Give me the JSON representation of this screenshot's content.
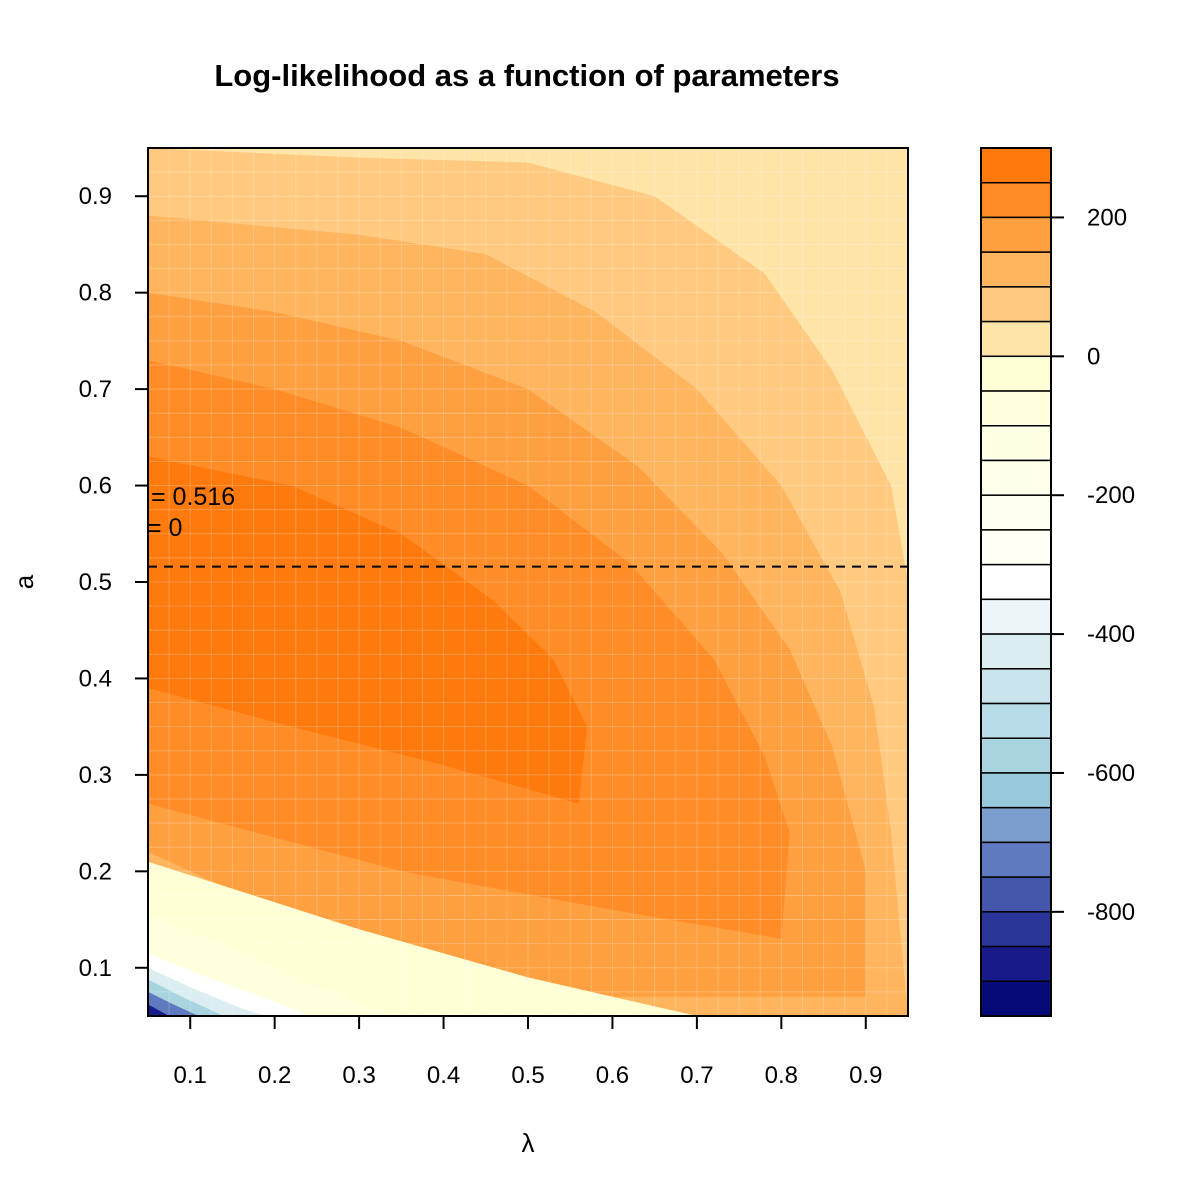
{
  "chart_data": {
    "type": "heatmap",
    "subtype": "filled-contour",
    "title": "Log-likelihood as a function of parameters",
    "xlabel": "λ",
    "ylabel": "a",
    "xlim": [
      0.05,
      0.95
    ],
    "ylim": [
      0.05,
      0.95
    ],
    "x_ticks": [
      0.1,
      0.2,
      0.3,
      0.4,
      0.5,
      0.6,
      0.7,
      0.8,
      0.9
    ],
    "y_ticks": [
      0.1,
      0.2,
      0.3,
      0.4,
      0.5,
      0.6,
      0.7,
      0.8,
      0.9
    ],
    "x_tick_labels": [
      "0.1",
      "0.2",
      "0.3",
      "0.4",
      "0.5",
      "0.6",
      "0.7",
      "0.8",
      "0.9"
    ],
    "y_tick_labels": [
      "0.1",
      "0.2",
      "0.3",
      "0.4",
      "0.5",
      "0.6",
      "0.7",
      "0.8",
      "0.9"
    ],
    "grid": true,
    "reference_line": {
      "orientation": "horizontal",
      "value": 0.516,
      "style": "dashed"
    },
    "annotations": [
      "= 0.516",
      "= 0"
    ],
    "colorbar": {
      "range": [
        -950,
        300
      ],
      "ticks": [
        200,
        0,
        -200,
        -400,
        -600,
        -800
      ],
      "tick_labels": [
        "200",
        "0",
        "-200",
        "-400",
        "-600",
        "-800"
      ],
      "levels": [
        {
          "from": 250,
          "to": 300,
          "color": "#FF7A0D"
        },
        {
          "from": 200,
          "to": 250,
          "color": "#FF8C26"
        },
        {
          "from": 150,
          "to": 200,
          "color": "#FFA040"
        },
        {
          "from": 100,
          "to": 150,
          "color": "#FFB45E"
        },
        {
          "from": 50,
          "to": 100,
          "color": "#FFCA80"
        },
        {
          "from": 0,
          "to": 50,
          "color": "#FFE4A8"
        },
        {
          "from": -50,
          "to": 0,
          "color": "#FFFFD6"
        },
        {
          "from": -100,
          "to": -50,
          "color": "#FFFFDE"
        },
        {
          "from": -150,
          "to": -100,
          "color": "#FFFFE4"
        },
        {
          "from": -200,
          "to": -150,
          "color": "#FFFFEA"
        },
        {
          "from": -250,
          "to": -200,
          "color": "#FFFFF0"
        },
        {
          "from": -300,
          "to": -250,
          "color": "#FFFFF6"
        },
        {
          "from": -350,
          "to": -300,
          "color": "#FFFFFF"
        },
        {
          "from": -400,
          "to": -350,
          "color": "#EEF5F8"
        },
        {
          "from": -450,
          "to": -400,
          "color": "#DCEDF2"
        },
        {
          "from": -500,
          "to": -450,
          "color": "#C9E4ED"
        },
        {
          "from": -550,
          "to": -500,
          "color": "#B8DCE7"
        },
        {
          "from": -600,
          "to": -550,
          "color": "#A8D4E0"
        },
        {
          "from": -650,
          "to": -600,
          "color": "#98CADB"
        },
        {
          "from": -700,
          "to": -650,
          "color": "#7B9ECE"
        },
        {
          "from": -750,
          "to": -700,
          "color": "#5F7ABE"
        },
        {
          "from": -800,
          "to": -750,
          "color": "#4456AA"
        },
        {
          "from": -850,
          "to": -800,
          "color": "#2A3698"
        },
        {
          "from": -900,
          "to": -850,
          "color": "#181A8A"
        },
        {
          "from": -950,
          "to": -900,
          "color": "#050A78"
        }
      ]
    },
    "regions": [
      {
        "level": 0,
        "shape": [
          [
            0.05,
            0.95
          ],
          [
            0.95,
            0.95
          ],
          [
            0.95,
            0.05
          ],
          [
            0.05,
            0.05
          ]
        ]
      },
      {
        "level": 50,
        "shape": [
          [
            0.05,
            0.95
          ],
          [
            0.3,
            0.94
          ],
          [
            0.5,
            0.935
          ],
          [
            0.65,
            0.9
          ],
          [
            0.78,
            0.82
          ],
          [
            0.86,
            0.72
          ],
          [
            0.93,
            0.6
          ],
          [
            0.95,
            0.5
          ],
          [
            0.95,
            0.05
          ],
          [
            0.05,
            0.05
          ]
        ]
      },
      {
        "level": 100,
        "shape": [
          [
            0.05,
            0.88
          ],
          [
            0.3,
            0.86
          ],
          [
            0.45,
            0.84
          ],
          [
            0.58,
            0.78
          ],
          [
            0.7,
            0.7
          ],
          [
            0.8,
            0.6
          ],
          [
            0.87,
            0.49
          ],
          [
            0.91,
            0.37
          ],
          [
            0.93,
            0.24
          ],
          [
            0.95,
            0.05
          ],
          [
            0.05,
            0.05
          ]
        ]
      },
      {
        "level": 150,
        "shape": [
          [
            0.05,
            0.8
          ],
          [
            0.2,
            0.78
          ],
          [
            0.35,
            0.75
          ],
          [
            0.5,
            0.7
          ],
          [
            0.63,
            0.62
          ],
          [
            0.73,
            0.53
          ],
          [
            0.81,
            0.43
          ],
          [
            0.86,
            0.33
          ],
          [
            0.9,
            0.2
          ],
          [
            0.9,
            0.07
          ],
          [
            0.6,
            0.07
          ],
          [
            0.3,
            0.12
          ],
          [
            0.05,
            0.22
          ]
        ]
      },
      {
        "level": 200,
        "shape": [
          [
            0.05,
            0.73
          ],
          [
            0.2,
            0.7
          ],
          [
            0.35,
            0.66
          ],
          [
            0.5,
            0.6
          ],
          [
            0.62,
            0.52
          ],
          [
            0.72,
            0.42
          ],
          [
            0.78,
            0.32
          ],
          [
            0.81,
            0.24
          ],
          [
            0.8,
            0.13
          ],
          [
            0.6,
            0.16
          ],
          [
            0.35,
            0.2
          ],
          [
            0.05,
            0.27
          ]
        ]
      },
      {
        "level": 250,
        "shape": [
          [
            0.05,
            0.63
          ],
          [
            0.22,
            0.6
          ],
          [
            0.35,
            0.55
          ],
          [
            0.46,
            0.48
          ],
          [
            0.53,
            0.42
          ],
          [
            0.57,
            0.35
          ],
          [
            0.56,
            0.27
          ],
          [
            0.4,
            0.31
          ],
          [
            0.22,
            0.35
          ],
          [
            0.05,
            0.39
          ]
        ]
      },
      {
        "level": -50,
        "shape": [
          [
            0.05,
            0.21
          ],
          [
            0.3,
            0.14
          ],
          [
            0.5,
            0.09
          ],
          [
            0.7,
            0.05
          ],
          [
            0.05,
            0.05
          ]
        ]
      },
      {
        "level": -100,
        "shape": [
          [
            0.05,
            0.155
          ],
          [
            0.15,
            0.12
          ],
          [
            0.25,
            0.08
          ],
          [
            0.34,
            0.05
          ],
          [
            0.05,
            0.05
          ]
        ]
      },
      {
        "level": -350,
        "shape": [
          [
            0.05,
            0.115
          ],
          [
            0.12,
            0.09
          ],
          [
            0.2,
            0.065
          ],
          [
            0.24,
            0.05
          ],
          [
            0.05,
            0.05
          ]
        ]
      },
      {
        "level": -450,
        "shape": [
          [
            0.05,
            0.1
          ],
          [
            0.1,
            0.08
          ],
          [
            0.16,
            0.058
          ],
          [
            0.19,
            0.05
          ],
          [
            0.05,
            0.05
          ]
        ]
      },
      {
        "level": -600,
        "shape": [
          [
            0.05,
            0.088
          ],
          [
            0.09,
            0.07
          ],
          [
            0.14,
            0.05
          ],
          [
            0.05,
            0.05
          ]
        ]
      },
      {
        "level": -750,
        "shape": [
          [
            0.05,
            0.075
          ],
          [
            0.08,
            0.062
          ],
          [
            0.11,
            0.05
          ],
          [
            0.05,
            0.05
          ]
        ]
      },
      {
        "level": -900,
        "shape": [
          [
            0.05,
            0.062
          ],
          [
            0.075,
            0.05
          ],
          [
            0.05,
            0.05
          ]
        ]
      }
    ]
  }
}
